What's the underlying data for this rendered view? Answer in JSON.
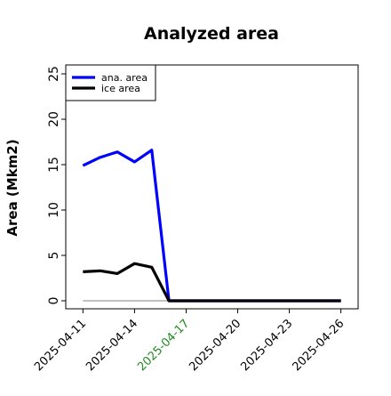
{
  "chart_data": {
    "type": "line",
    "title": "Analyzed area",
    "xlabel": "",
    "ylabel": "Area (Mkm2)",
    "ylim": [
      0,
      26
    ],
    "xlim": [
      "2025-04-10",
      "2025-04-27"
    ],
    "grid": false,
    "legend_position": "top-left",
    "x_ticks": [
      "2025-04-11",
      "2025-04-14",
      "2025-04-17",
      "2025-04-20",
      "2025-04-23",
      "2025-04-26"
    ],
    "highlight_tick": "2025-04-17",
    "highlight_color": "#228B22",
    "y_ticks": [
      "0",
      "5",
      "10",
      "15",
      "20",
      "25"
    ],
    "series": [
      {
        "name": "ana. area",
        "color": "#0000ff",
        "x": [
          "2025-04-11",
          "2025-04-12",
          "2025-04-13",
          "2025-04-14",
          "2025-04-15",
          "2025-04-16",
          "2025-04-17",
          "2025-04-18",
          "2025-04-19",
          "2025-04-20",
          "2025-04-21",
          "2025-04-22",
          "2025-04-23",
          "2025-04-24",
          "2025-04-25",
          "2025-04-26"
        ],
        "values": [
          14.9,
          15.8,
          16.4,
          15.3,
          16.6,
          0,
          0,
          0,
          0,
          0,
          0,
          0,
          0,
          0,
          0,
          0
        ]
      },
      {
        "name": "ice area",
        "color": "#000000",
        "x": [
          "2025-04-11",
          "2025-04-12",
          "2025-04-13",
          "2025-04-14",
          "2025-04-15",
          "2025-04-16",
          "2025-04-17",
          "2025-04-18",
          "2025-04-19",
          "2025-04-20",
          "2025-04-21",
          "2025-04-22",
          "2025-04-23",
          "2025-04-24",
          "2025-04-25",
          "2025-04-26"
        ],
        "values": [
          3.2,
          3.3,
          3.0,
          4.1,
          3.7,
          0,
          0,
          0,
          0,
          0,
          0,
          0,
          0,
          0,
          0,
          0
        ]
      }
    ],
    "reference_line": {
      "y": 0,
      "color": "#808080"
    }
  }
}
